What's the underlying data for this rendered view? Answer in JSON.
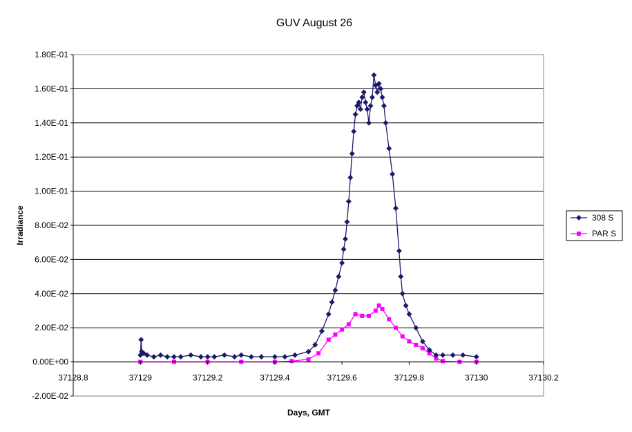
{
  "chart_data": {
    "type": "scatter",
    "title": "GUV August 26",
    "xlabel": "Days, GMT",
    "ylabel": "Irradiance",
    "xlim": [
      37128.8,
      37130.2
    ],
    "ylim": [
      -0.02,
      0.18
    ],
    "x_ticks": [
      37128.8,
      37129,
      37129.2,
      37129.4,
      37129.6,
      37129.8,
      37130,
      37130.2
    ],
    "x_tick_labels": [
      "37128.8",
      "37129",
      "37129.2",
      "37129.4",
      "37129.6",
      "37129.8",
      "37130",
      "37130.2"
    ],
    "y_ticks": [
      -0.02,
      0,
      0.02,
      0.04,
      0.06,
      0.08,
      0.1,
      0.12,
      0.14,
      0.16,
      0.18
    ],
    "y_tick_labels": [
      "-2.00E-02",
      "0.00E+00",
      "2.00E-02",
      "4.00E-02",
      "6.00E-02",
      "8.00E-02",
      "1.00E-01",
      "1.20E-01",
      "1.40E-01",
      "1.60E-01",
      "1.80E-01"
    ],
    "grid": "horizontal",
    "legend_position": "right",
    "series": [
      {
        "name": "308 S",
        "color": "#1a1a6e",
        "marker": "diamond",
        "x": [
          37129.0,
          37129.002,
          37129.004,
          37129.01,
          37129.02,
          37129.04,
          37129.06,
          37129.08,
          37129.1,
          37129.12,
          37129.15,
          37129.18,
          37129.2,
          37129.22,
          37129.25,
          37129.28,
          37129.3,
          37129.33,
          37129.36,
          37129.4,
          37129.43,
          37129.46,
          37129.5,
          37129.52,
          37129.54,
          37129.56,
          37129.57,
          37129.58,
          37129.59,
          37129.6,
          37129.605,
          37129.61,
          37129.615,
          37129.62,
          37129.625,
          37129.63,
          37129.635,
          37129.64,
          37129.645,
          37129.65,
          37129.655,
          37129.66,
          37129.665,
          37129.67,
          37129.675,
          37129.68,
          37129.685,
          37129.69,
          37129.695,
          37129.7,
          37129.705,
          37129.71,
          37129.715,
          37129.72,
          37129.725,
          37129.73,
          37129.74,
          37129.75,
          37129.76,
          37129.77,
          37129.775,
          37129.78,
          37129.79,
          37129.8,
          37129.82,
          37129.84,
          37129.86,
          37129.88,
          37129.9,
          37129.93,
          37129.96,
          37130.0
        ],
        "y": [
          0.004,
          0.013,
          0.006,
          0.005,
          0.004,
          0.003,
          0.004,
          0.003,
          0.003,
          0.003,
          0.004,
          0.003,
          0.003,
          0.003,
          0.004,
          0.003,
          0.004,
          0.003,
          0.003,
          0.003,
          0.003,
          0.004,
          0.006,
          0.01,
          0.018,
          0.028,
          0.035,
          0.042,
          0.05,
          0.058,
          0.066,
          0.072,
          0.082,
          0.094,
          0.108,
          0.122,
          0.135,
          0.145,
          0.15,
          0.152,
          0.148,
          0.155,
          0.158,
          0.152,
          0.148,
          0.14,
          0.15,
          0.155,
          0.168,
          0.162,
          0.158,
          0.163,
          0.16,
          0.155,
          0.15,
          0.14,
          0.125,
          0.11,
          0.09,
          0.065,
          0.05,
          0.04,
          0.033,
          0.028,
          0.02,
          0.012,
          0.007,
          0.004,
          0.004,
          0.004,
          0.004,
          0.003
        ]
      },
      {
        "name": "PAR S",
        "color": "#ff00ff",
        "marker": "square",
        "x": [
          37129.0,
          37129.1,
          37129.2,
          37129.3,
          37129.4,
          37129.45,
          37129.5,
          37129.53,
          37129.56,
          37129.58,
          37129.6,
          37129.62,
          37129.64,
          37129.66,
          37129.68,
          37129.7,
          37129.71,
          37129.72,
          37129.74,
          37129.76,
          37129.78,
          37129.8,
          37129.82,
          37129.84,
          37129.86,
          37129.88,
          37129.9,
          37129.95,
          37130.0
        ],
        "y": [
          0.0,
          0.0,
          0.0,
          0.0,
          0.0,
          0.0005,
          0.0015,
          0.005,
          0.013,
          0.016,
          0.019,
          0.022,
          0.028,
          0.027,
          0.027,
          0.03,
          0.033,
          0.031,
          0.025,
          0.02,
          0.015,
          0.012,
          0.01,
          0.008,
          0.005,
          0.002,
          0.0005,
          0.0,
          0.0
        ]
      }
    ]
  }
}
